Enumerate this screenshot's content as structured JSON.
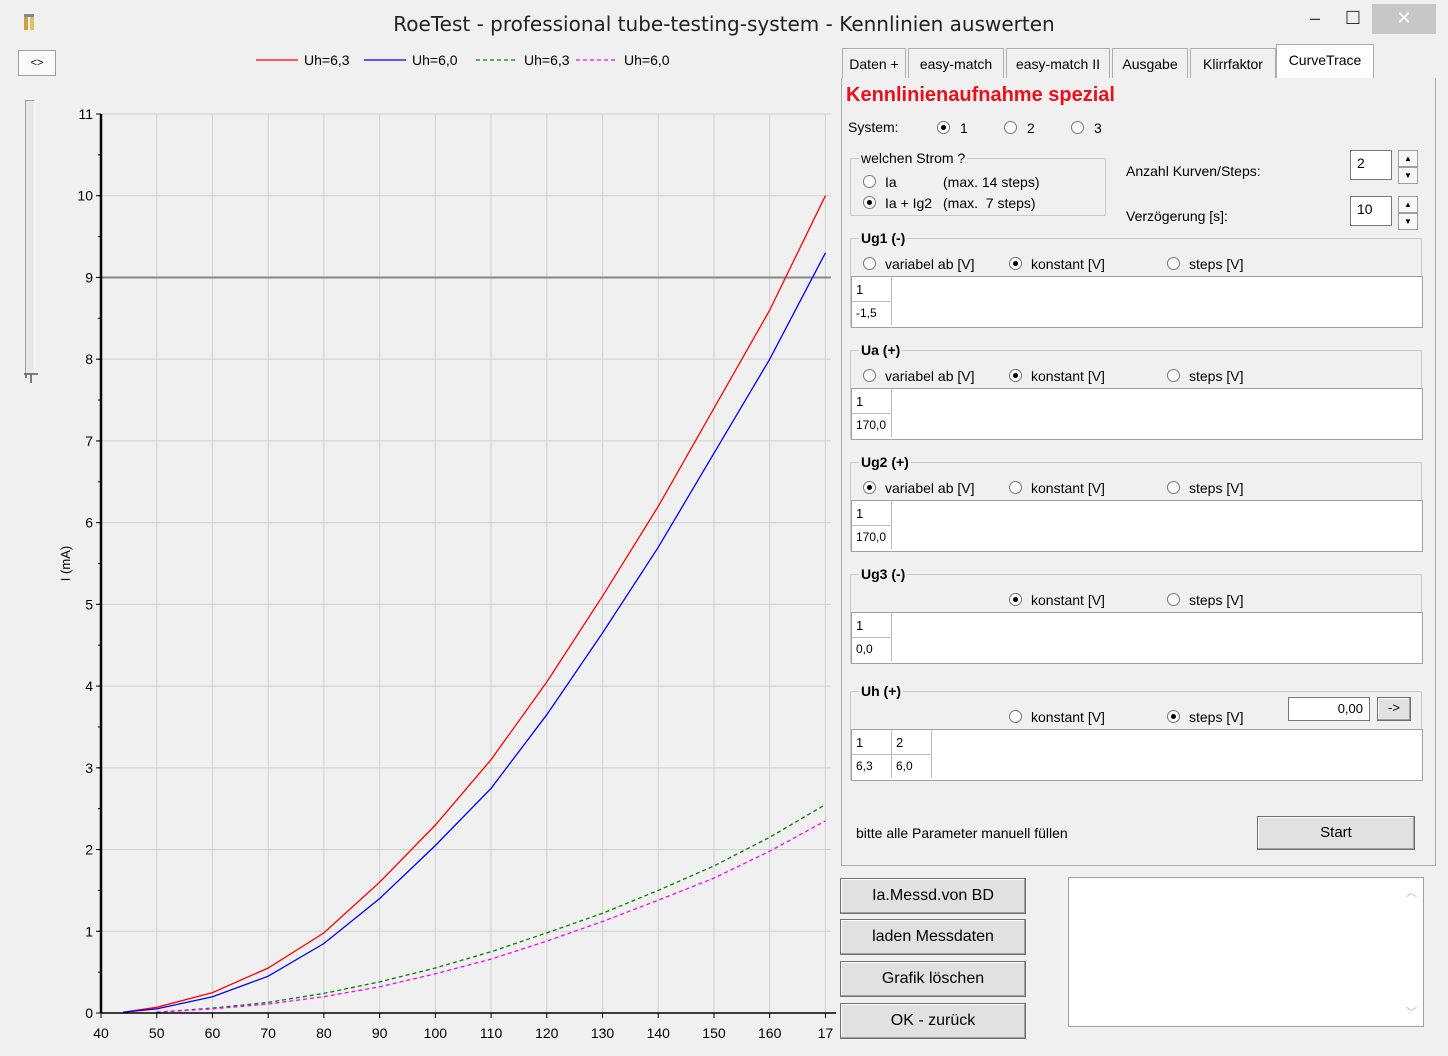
{
  "window": {
    "title": "RoeTest - professional tube-testing-system - Kennlinien auswerten",
    "min_label": "–",
    "max_label": "☐",
    "close_label": "✕"
  },
  "toggle_label": "<>",
  "chart_data": {
    "type": "line",
    "ylabel": "I (mA)",
    "xlim": [
      40,
      171
    ],
    "ylim": [
      0,
      11
    ],
    "x_ticks": [
      "40",
      "50",
      "60",
      "70",
      "80",
      "90",
      "100",
      "110",
      "120",
      "130",
      "140",
      "150",
      "160",
      "17"
    ],
    "y_ticks": [
      "0",
      "1",
      "2",
      "3",
      "4",
      "5",
      "6",
      "7",
      "8",
      "9",
      "10",
      "11"
    ],
    "grid": true,
    "legend_position": "top",
    "hline": 9,
    "series": [
      {
        "name": "Uh=6,3",
        "color": "#ff0000",
        "dash": false,
        "x": [
          44,
          50,
          60,
          70,
          80,
          90,
          100,
          110,
          120,
          130,
          140,
          150,
          160,
          170
        ],
        "y": [
          0.01,
          0.07,
          0.25,
          0.55,
          0.98,
          1.6,
          2.3,
          3.1,
          4.05,
          5.1,
          6.2,
          7.4,
          8.6,
          10.0
        ]
      },
      {
        "name": "Uh=6,0",
        "color": "#0000ff",
        "dash": false,
        "x": [
          44,
          50,
          60,
          70,
          80,
          90,
          100,
          110,
          120,
          130,
          140,
          150,
          160,
          170
        ],
        "y": [
          0.01,
          0.05,
          0.2,
          0.45,
          0.85,
          1.4,
          2.05,
          2.75,
          3.65,
          4.65,
          5.7,
          6.85,
          8.0,
          9.3
        ]
      },
      {
        "name": "Uh=6,3",
        "color": "#008000",
        "dash": true,
        "x": [
          50,
          60,
          70,
          80,
          90,
          100,
          110,
          120,
          130,
          140,
          150,
          160,
          170
        ],
        "y": [
          0.01,
          0.06,
          0.13,
          0.24,
          0.38,
          0.55,
          0.75,
          0.98,
          1.22,
          1.5,
          1.8,
          2.15,
          2.55
        ]
      },
      {
        "name": "Uh=6,0",
        "color": "#ff00ff",
        "dash": true,
        "x": [
          50,
          60,
          70,
          80,
          90,
          100,
          110,
          120,
          130,
          140,
          150,
          160,
          170
        ],
        "y": [
          0.01,
          0.05,
          0.11,
          0.2,
          0.32,
          0.48,
          0.66,
          0.88,
          1.12,
          1.38,
          1.65,
          1.98,
          2.35
        ]
      }
    ]
  },
  "tabs": [
    "Daten +",
    "easy-match",
    "easy-match II",
    "Ausgabe",
    "Klirrfaktor",
    "CurveTrace"
  ],
  "panel": {
    "heading": "Kennlinienaufnahme spezial",
    "system_label": "System:",
    "system_options": [
      "1",
      "2",
      "3"
    ],
    "strom_group": "welchen Strom ?",
    "strom_ia": "Ia",
    "strom_ia_max": "(max. 14 steps)",
    "strom_iaig2": "Ia + Ig2",
    "strom_iaig2_max": "(max.  7 steps)",
    "anzahl_label": "Anzahl Kurven/Steps:",
    "anzahl_value": "2",
    "verz_label": "Verzögerung [s]:",
    "verz_value": "10",
    "variabel": "variabel ab [V]",
    "konstant": "konstant [V]",
    "steps": "steps [V]",
    "ug1": {
      "title": "Ug1 (-)",
      "col": "1",
      "val": "-1,5"
    },
    "ua": {
      "title": "Ua (+)",
      "col": "1",
      "val": "170,0"
    },
    "ug2": {
      "title": "Ug2 (+)",
      "col": "1",
      "val": "170,0"
    },
    "ug3": {
      "title": "Ug3 (-)",
      "col": "1",
      "val": "0,0"
    },
    "uh": {
      "title": "Uh (+)",
      "input": "0,00",
      "arrow": "->",
      "cols": [
        "1",
        "2"
      ],
      "vals": [
        "6,3",
        "6,0"
      ]
    },
    "hint": "bitte alle Parameter manuell füllen",
    "start": "Start"
  },
  "buttons": {
    "messd_bd": "Ia.Messd.von BD",
    "laden": "laden Messdaten",
    "grafik": "Grafik löschen",
    "ok": "OK - zurück"
  }
}
